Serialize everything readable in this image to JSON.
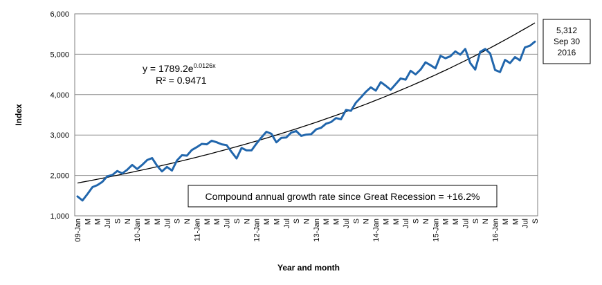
{
  "chart_data": {
    "type": "line",
    "title": "",
    "xlabel": "Year and month",
    "ylabel": "Index",
    "ylim": [
      1000,
      6000
    ],
    "yticks": [
      "1,000",
      "2,000",
      "3,000",
      "4,000",
      "5,000",
      "6,000"
    ],
    "grid": true,
    "x_ticks": [
      "09-Jan",
      "M",
      "M",
      "Jul",
      "S",
      "N",
      "10-Jan",
      "M",
      "M",
      "Jul",
      "S",
      "N",
      "11-Jan",
      "M",
      "M",
      "Jul",
      "S",
      "N",
      "12-Jan",
      "M",
      "M",
      "Jul",
      "S",
      "N",
      "13-Jan",
      "M",
      "M",
      "Jul",
      "S",
      "N",
      "14-Jan",
      "M",
      "M",
      "Jul",
      "S",
      "N",
      "15-Jan",
      "M",
      "M",
      "Jul",
      "S",
      "N",
      "16-Jan",
      "M",
      "M",
      "Jul",
      "S"
    ],
    "series": [
      {
        "color": "#2166ac",
        "x_start": "2009-01",
        "x_end": "2016-09",
        "values": [
          1480,
          1380,
          1540,
          1710,
          1760,
          1840,
          1980,
          2010,
          2110,
          2050,
          2140,
          2260,
          2160,
          2260,
          2380,
          2430,
          2240,
          2100,
          2210,
          2120,
          2370,
          2500,
          2490,
          2630,
          2700,
          2780,
          2770,
          2860,
          2820,
          2770,
          2750,
          2580,
          2420,
          2680,
          2620,
          2620,
          2790,
          2940,
          3080,
          3030,
          2820,
          2930,
          2940,
          3060,
          3100,
          2980,
          3010,
          3020,
          3140,
          3180,
          3280,
          3320,
          3420,
          3390,
          3620,
          3600,
          3800,
          3930,
          4070,
          4180,
          4100,
          4310,
          4220,
          4120,
          4260,
          4400,
          4370,
          4590,
          4500,
          4620,
          4800,
          4730,
          4650,
          4960,
          4900,
          4950,
          5070,
          4990,
          5130,
          4780,
          4620,
          5060,
          5130,
          5020,
          4610,
          4560,
          4860,
          4780,
          4930,
          4850,
          5170,
          5210,
          5312
        ]
      },
      {
        "type": "trendline",
        "color": "#000000",
        "equation": "y = 1789.2e^(0.0126x)",
        "a": 1789.2,
        "b": 0.0126
      }
    ]
  },
  "annotations": {
    "eq_main": "y = 1789.2e",
    "eq_exp": "0.0126x",
    "r2": "R² = 0.9471",
    "cagr_box": "Compound annual growth rate since Great Recession = +16.2%",
    "callout_line1": "5,312",
    "callout_line2": "Sep 30",
    "callout_line3": "2016"
  }
}
